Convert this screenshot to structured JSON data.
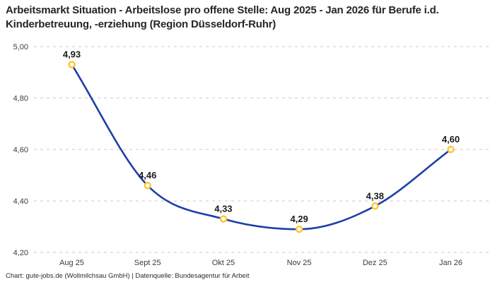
{
  "footer": {
    "attribution": "Chart: gute-jobs.de (Wollmilchsau GmbH) | Datenquelle: Bundesagentur für Arbeit"
  },
  "chart_data": {
    "type": "line",
    "title": "Arbeitsmarkt Situation - Arbeitslose pro offene Stelle: Aug 2025 - Jan 2026 für Berufe i.d. Kinderbetreuung, -erziehung (Region Düsseldorf-Ruhr)",
    "categories": [
      "Aug 25",
      "Sept 25",
      "Okt 25",
      "Nov 25",
      "Dez 25",
      "Jan 26"
    ],
    "values": [
      4.93,
      4.46,
      4.33,
      4.29,
      4.38,
      4.6
    ],
    "point_labels": [
      "4,93",
      "4,46",
      "4,33",
      "4,29",
      "4,38",
      "4,60"
    ],
    "y_ticks": [
      {
        "value": 5.0,
        "label": "5,00"
      },
      {
        "value": 4.8,
        "label": "4,80"
      },
      {
        "value": 4.6,
        "label": "4,60"
      },
      {
        "value": 4.4,
        "label": "4,40"
      },
      {
        "value": 4.2,
        "label": "4,20"
      }
    ],
    "ylim": [
      4.2,
      5.0
    ],
    "xlabel": "",
    "ylabel": "",
    "legend": "none",
    "grid": "horizontal-dashed",
    "interpolation": "monotone",
    "colors": {
      "line": "#1d3fa8",
      "marker_stroke": "#fec52f",
      "marker_fill": "#ffffff",
      "grid": "#c9c9c9",
      "point_label": "#1a1a1a",
      "tick_label": "#3c3c3c"
    }
  }
}
